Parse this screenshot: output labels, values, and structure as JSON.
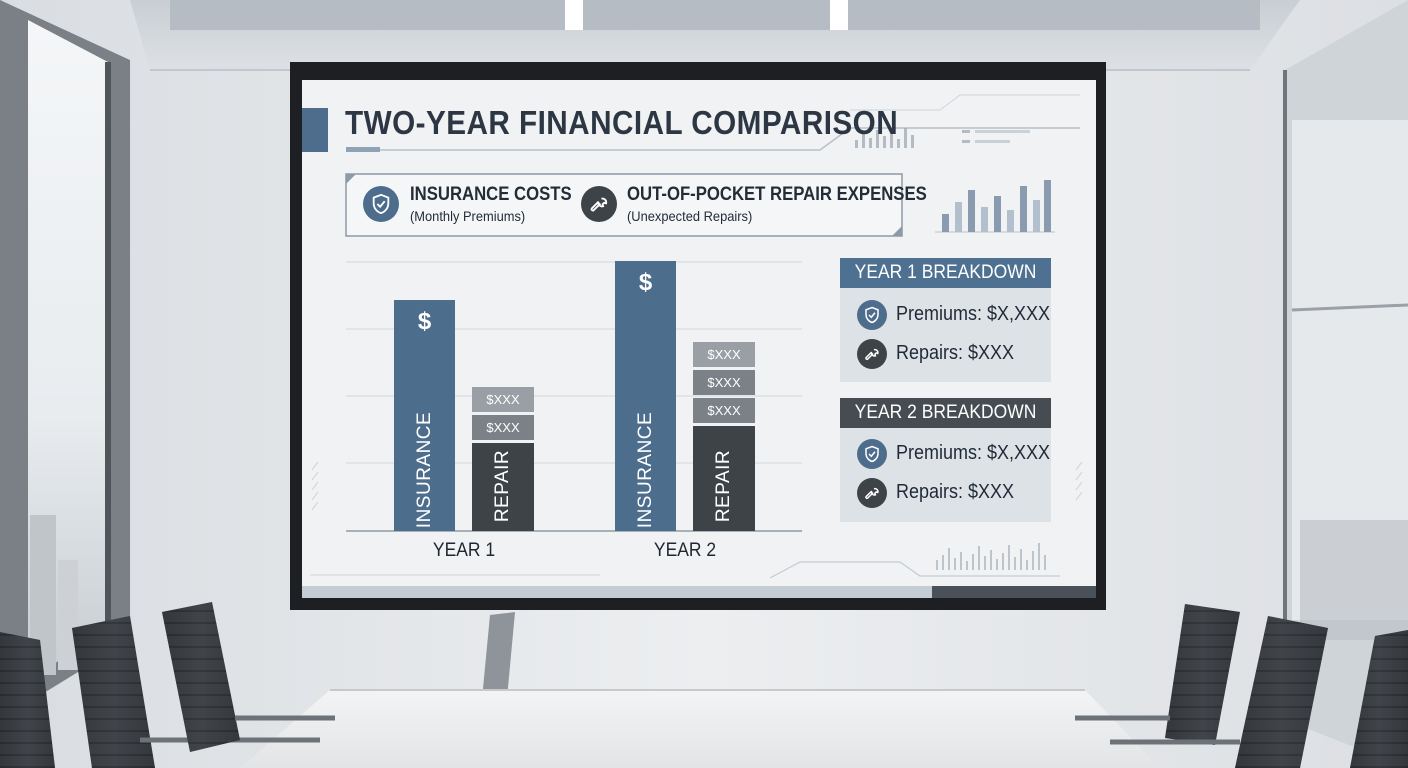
{
  "slide": {
    "title": "TWO-YEAR FINANCIAL COMPARISON",
    "legend": [
      {
        "icon": "shield-check-icon",
        "label": "INSURANCE COSTS",
        "sublabel": "(Monthly Premiums)"
      },
      {
        "icon": "wrench-icon",
        "label": "OUT-OF-POCKET REPAIR EXPENSES",
        "sublabel": "(Unexpected Repairs)"
      }
    ],
    "panels": [
      {
        "heading": "YEAR 1 BREAKDOWN",
        "rows": [
          {
            "icon": "shield-check-icon",
            "text": "Premiums: $X,XXX"
          },
          {
            "icon": "wrench-icon",
            "text": "Repairs: $XXX"
          }
        ]
      },
      {
        "heading": "YEAR 2 BREAKDOWN",
        "rows": [
          {
            "icon": "shield-check-icon",
            "text": "Premiums: $X,XXX"
          },
          {
            "icon": "wrench-icon",
            "text": "Repairs: $XXX"
          }
        ]
      }
    ]
  },
  "chart_data": {
    "type": "bar",
    "categories": [
      "YEAR 1",
      "YEAR 2"
    ],
    "series": [
      {
        "name": "INSURANCE",
        "values": [
          0.77,
          0.9
        ]
      },
      {
        "name": "REPAIR",
        "values": [
          0.48,
          0.63
        ]
      }
    ],
    "insurance_bar_symbol": "$",
    "repair_segments": [
      [
        "$XXX",
        "$XXX"
      ],
      [
        "$XXX",
        "$XXX",
        "$XXX"
      ]
    ],
    "bar_labels": [
      "INSURANCE",
      "REPAIR"
    ],
    "grid": true,
    "colors": {
      "insurance": "#4d6d8d",
      "repair": "#3e4348",
      "segment": "#7c8187",
      "segment_top": "#9a9fa5"
    }
  },
  "colors": {
    "panel_heading_year1": "#4f7191",
    "panel_heading_year2": "#474c52",
    "slide_background": "#f0f2f4",
    "title_text": "#2d3744",
    "accent": "#4e6d8c"
  }
}
